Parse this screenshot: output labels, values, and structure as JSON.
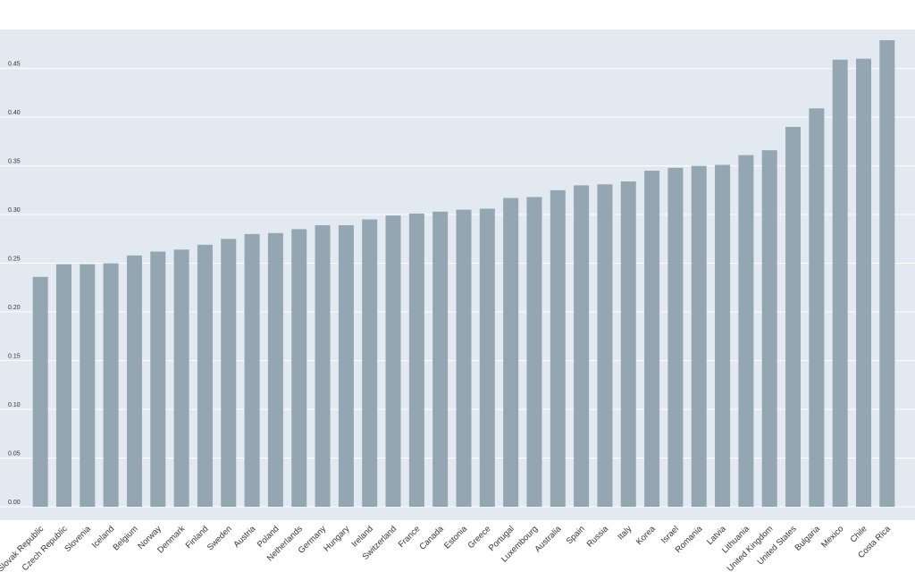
{
  "chart_data": {
    "type": "bar",
    "title": "",
    "xlabel": "",
    "ylabel": "",
    "ylim": [
      0,
      0.49
    ],
    "yticks": [
      0,
      0.05,
      0.1,
      0.15,
      0.2,
      0.25,
      0.3,
      0.35,
      0.4,
      0.45
    ],
    "ytick_labels": [
      "0.00",
      "0.05",
      "0.10",
      "0.15",
      "0.20",
      "0.25",
      "0.30",
      "0.35",
      "0.40",
      "0.45"
    ],
    "grid": true,
    "colors": {
      "plot_bg": "#e2e9f0",
      "bar": "#94a6b2",
      "grid": "#ffffff",
      "text": "#333333"
    },
    "categories": [
      "Slovak Republic",
      "Czech Republic",
      "Slovenia",
      "Iceland",
      "Belgium",
      "Norway",
      "Denmark",
      "Finland",
      "Sweden",
      "Austria",
      "Poland",
      "Netherlands",
      "Germany",
      "Hungary",
      "Ireland",
      "Switzerland",
      "France",
      "Canada",
      "Estonia",
      "Greece",
      "Portugal",
      "Luxembourg",
      "Australia",
      "Spain",
      "Russia",
      "Italy",
      "Korea",
      "Israel",
      "Romania",
      "Latvia",
      "Lithuania",
      "United Kingdom",
      "United States",
      "Bulgaria",
      "Mexico",
      "Chile",
      "Costa Rica"
    ],
    "values": [
      0.236,
      0.249,
      0.249,
      0.25,
      0.258,
      0.262,
      0.264,
      0.269,
      0.275,
      0.28,
      0.281,
      0.285,
      0.289,
      0.289,
      0.295,
      0.299,
      0.301,
      0.303,
      0.305,
      0.306,
      0.317,
      0.318,
      0.325,
      0.33,
      0.331,
      0.334,
      0.345,
      0.348,
      0.35,
      0.351,
      0.361,
      0.366,
      0.39,
      0.409,
      0.459,
      0.46,
      0.479
    ]
  }
}
